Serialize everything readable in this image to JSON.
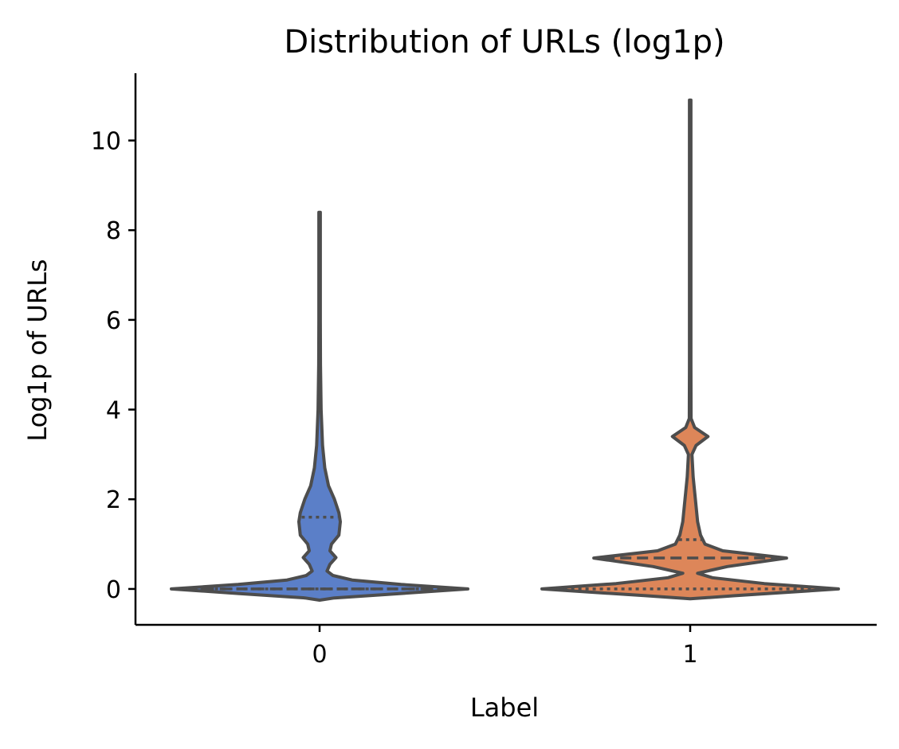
{
  "chart_data": {
    "type": "violin",
    "title": "Distribution of URLs (log1p)",
    "xlabel": "Label",
    "ylabel": "Log1p of URLs",
    "categories": [
      "0",
      "1"
    ],
    "ylim": [
      -0.8,
      11.5
    ],
    "yticks": [
      0,
      2,
      4,
      6,
      8,
      10
    ],
    "grid": false,
    "colors": [
      "#5b7fc8",
      "#dd8659"
    ],
    "outline_color": "#4d4d4d",
    "violins": [
      {
        "category": "0",
        "min": 0,
        "max": 8.4,
        "q1": 0,
        "median": 0,
        "q3": 1.6,
        "profile": [
          [
            -0.25,
            0.0
          ],
          [
            -0.2,
            0.1
          ],
          [
            -0.1,
            0.55
          ],
          [
            0.0,
            1.0
          ],
          [
            0.1,
            0.55
          ],
          [
            0.2,
            0.22
          ],
          [
            0.3,
            0.09
          ],
          [
            0.4,
            0.05
          ],
          [
            0.55,
            0.07
          ],
          [
            0.7,
            0.11
          ],
          [
            0.85,
            0.07
          ],
          [
            1.0,
            0.08
          ],
          [
            1.2,
            0.13
          ],
          [
            1.5,
            0.14
          ],
          [
            1.7,
            0.13
          ],
          [
            2.0,
            0.1
          ],
          [
            2.3,
            0.06
          ],
          [
            2.7,
            0.035
          ],
          [
            3.2,
            0.02
          ],
          [
            4.0,
            0.01
          ],
          [
            5.0,
            0.006
          ],
          [
            6.0,
            0.005
          ],
          [
            8.4,
            0.005
          ]
        ]
      },
      {
        "category": "1",
        "min": 0,
        "max": 10.9,
        "q1": 0,
        "median": 0.69,
        "q3": 1.1,
        "profile": [
          [
            -0.22,
            0.0
          ],
          [
            -0.15,
            0.3
          ],
          [
            0.0,
            1.0
          ],
          [
            0.12,
            0.5
          ],
          [
            0.25,
            0.15
          ],
          [
            0.35,
            0.05
          ],
          [
            0.5,
            0.25
          ],
          [
            0.69,
            0.65
          ],
          [
            0.85,
            0.22
          ],
          [
            1.0,
            0.1
          ],
          [
            1.2,
            0.07
          ],
          [
            1.5,
            0.05
          ],
          [
            2.0,
            0.035
          ],
          [
            2.5,
            0.02
          ],
          [
            3.0,
            0.012
          ],
          [
            3.2,
            0.04
          ],
          [
            3.4,
            0.12
          ],
          [
            3.6,
            0.03
          ],
          [
            3.8,
            0.006
          ],
          [
            5.0,
            0.005
          ],
          [
            10.9,
            0.005
          ]
        ]
      }
    ]
  }
}
